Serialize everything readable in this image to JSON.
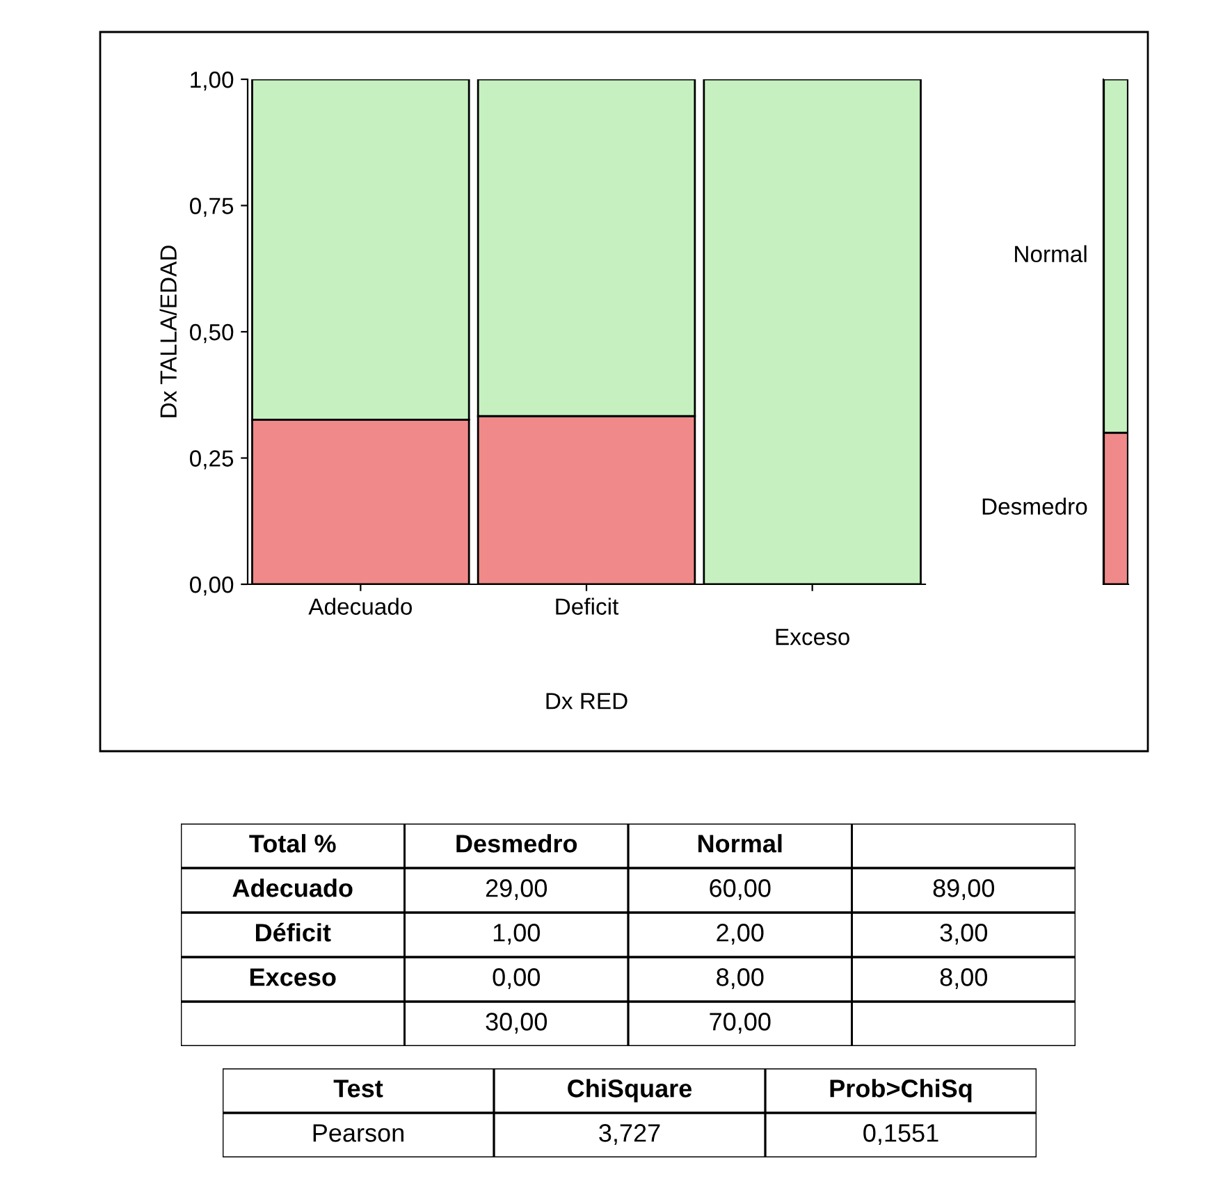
{
  "chart_data": [
    {
      "type": "bar",
      "stacked": true,
      "xlabel": "Dx RED",
      "ylabel": "Dx TALLA/EDAD",
      "categories": [
        "Adecuado",
        "Deficit",
        "Exceso"
      ],
      "series": [
        {
          "color": "#f08a8a",
          "values": [
            0.326,
            0.333,
            0.0
          ]
        },
        {
          "color": "#c6f0c0",
          "values": [
            0.674,
            0.667,
            1.0
          ]
        }
      ],
      "ylim": [
        0,
        1
      ],
      "yticks": [
        {
          "value": 0,
          "label": "0,00"
        },
        {
          "value": 0.25,
          "label": "0,25"
        },
        {
          "value": 0.5,
          "label": "0,50"
        },
        {
          "value": 0.75,
          "label": "0,75"
        },
        {
          "value": 1,
          "label": "1,00"
        }
      ],
      "grid": false,
      "legend": false
    },
    {
      "type": "bar",
      "stacked": true,
      "categories": [
        null
      ],
      "series": [
        {
          "name": "Desmedro",
          "color": "#f08a8a",
          "values": [
            0.3
          ]
        },
        {
          "name": "Normal",
          "color": "#c6f0c0",
          "values": [
            0.7
          ]
        }
      ],
      "ylim": [
        0,
        1
      ],
      "tick_labels": false
    },
    {
      "type": "other",
      "categories": [
        "Total %",
        "Desmedro",
        "Normal",
        null
      ],
      "annotations": [
        "Adecuado",
        "29,00",
        "60,00",
        "89,00",
        "Déficit",
        "1,00",
        "2,00",
        "3,00",
        "Exceso",
        "0,00",
        "8,00",
        "8,00",
        "30,00",
        "70,00"
      ]
    },
    {
      "type": "other",
      "categories": [
        "Test",
        "ChiSquare",
        "Prob>ChiSq"
      ],
      "annotations": [
        "Pearson",
        "3,727",
        "0,1551"
      ]
    }
  ]
}
